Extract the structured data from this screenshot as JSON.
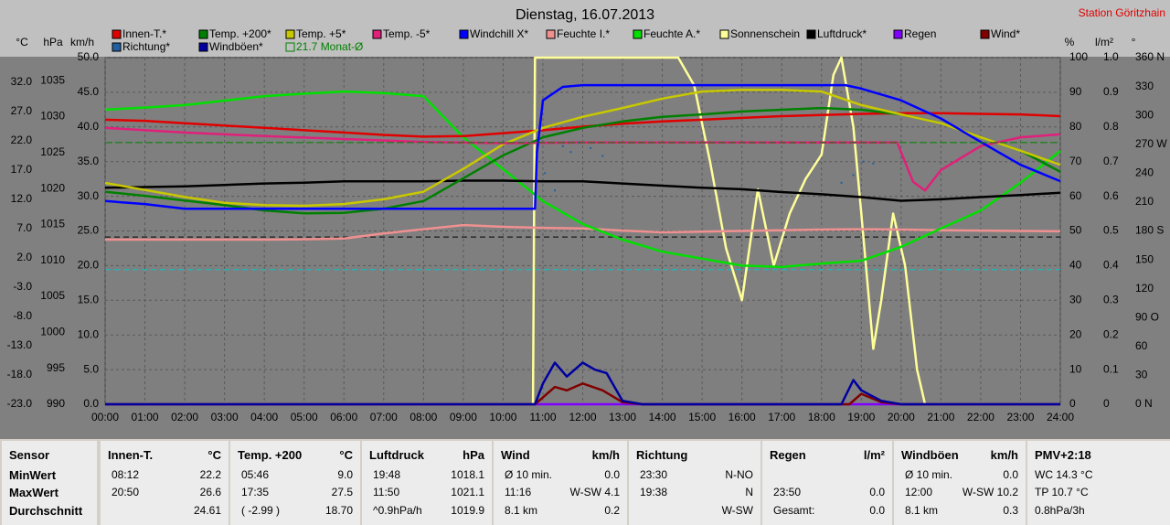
{
  "chart_data": {
    "type": "line",
    "title": "Dienstag, 16.07.2013",
    "station": "Station Göritzhain",
    "grid": true,
    "x": [
      0,
      1,
      2,
      3,
      4,
      5,
      6,
      7,
      8,
      9,
      10,
      11,
      12,
      13,
      14,
      15,
      16,
      17,
      18,
      19,
      20,
      21,
      22,
      23,
      24
    ],
    "xlim": [
      0,
      24
    ],
    "xticks": [
      {
        "value": 0,
        "label": "00:00"
      },
      {
        "value": 1,
        "label": "01:00"
      },
      {
        "value": 2,
        "label": "02:00"
      },
      {
        "value": 3,
        "label": "03:00"
      },
      {
        "value": 4,
        "label": "04:00"
      },
      {
        "value": 5,
        "label": "05:00"
      },
      {
        "value": 6,
        "label": "06:00"
      },
      {
        "value": 7,
        "label": "07:00"
      },
      {
        "value": 8,
        "label": "08:00"
      },
      {
        "value": 9,
        "label": "09:00"
      },
      {
        "value": 10,
        "label": "10:00"
      },
      {
        "value": 11,
        "label": "11:00"
      },
      {
        "value": 12,
        "label": "12:00"
      },
      {
        "value": 13,
        "label": "13:00"
      },
      {
        "value": 14,
        "label": "14:00"
      },
      {
        "value": 15,
        "label": "15:00"
      },
      {
        "value": 16,
        "label": "16:00"
      },
      {
        "value": 17,
        "label": "17:00"
      },
      {
        "value": 18,
        "label": "18:00"
      },
      {
        "value": 19,
        "label": "19:00"
      },
      {
        "value": 20,
        "label": "20:00"
      },
      {
        "value": 21,
        "label": "21:00"
      },
      {
        "value": 22,
        "label": "22:00"
      },
      {
        "value": 23,
        "label": "23:00"
      },
      {
        "value": 24,
        "label": "24:00"
      }
    ],
    "axes": {
      "c": {
        "unit": "°C",
        "lim": [
          -23,
          36.2
        ],
        "ticks": [
          {
            "value": -23,
            "label": "-23.0"
          },
          {
            "value": -18,
            "label": "-18.0"
          },
          {
            "value": -13,
            "label": "-13.0"
          },
          {
            "value": -8,
            "label": "-8.0"
          },
          {
            "value": -3,
            "label": "-3.0"
          },
          {
            "value": 2,
            "label": "2.0"
          },
          {
            "value": 7,
            "label": "7.0"
          },
          {
            "value": 12,
            "label": "12.0"
          },
          {
            "value": 17,
            "label": "17.0"
          },
          {
            "value": 22,
            "label": "22.0"
          },
          {
            "value": 27,
            "label": "27.0"
          },
          {
            "value": 32,
            "label": "32.0"
          }
        ]
      },
      "hpa": {
        "unit": "hPa",
        "lim": [
          990,
          1038.2
        ],
        "ticks": [
          990,
          995,
          1000,
          1005,
          1010,
          1015,
          1020,
          1025,
          1030,
          1035
        ]
      },
      "kmh": {
        "unit": "km/h",
        "lim": [
          0,
          50
        ],
        "ticks": [
          {
            "value": 0,
            "label": "0.0"
          },
          {
            "value": 5,
            "label": "5.0"
          },
          {
            "value": 10,
            "label": "10.0"
          },
          {
            "value": 15,
            "label": "15.0"
          },
          {
            "value": 20,
            "label": "20.0"
          },
          {
            "value": 25,
            "label": "25.0"
          },
          {
            "value": 30,
            "label": "30.0"
          },
          {
            "value": 35,
            "label": "35.0"
          },
          {
            "value": 40,
            "label": "40.0"
          },
          {
            "value": 45,
            "label": "45.0"
          },
          {
            "value": 50,
            "label": "50.0"
          }
        ]
      },
      "pct": {
        "unit": "%",
        "lim": [
          0,
          100
        ],
        "ticks": [
          0,
          10,
          20,
          30,
          40,
          50,
          60,
          70,
          80,
          90,
          100
        ]
      },
      "mm": {
        "unit": "l/m²",
        "lim": [
          0,
          1
        ],
        "ticks": [
          0,
          0.1,
          0.2,
          0.3,
          0.4,
          0.5,
          0.6,
          0.7,
          0.8,
          0.9,
          {
            "value": 1,
            "label": "1.0"
          }
        ]
      },
      "deg": {
        "unit": "°",
        "lim": [
          0,
          360
        ],
        "ticks": [
          {
            "value": 0,
            "label": "0 N"
          },
          30,
          60,
          {
            "value": 90,
            "label": "90 O"
          },
          120,
          150,
          {
            "value": 180,
            "label": "180 S"
          },
          210,
          240,
          {
            "value": 270,
            "label": "270 W"
          },
          300,
          330,
          {
            "value": 360,
            "label": "360 N"
          }
        ]
      }
    },
    "reference_lines": [
      {
        "axis": "hpa",
        "value": 1013.25,
        "color": "#000000"
      },
      {
        "axis": "c",
        "value": 0,
        "color": "#00c8c8"
      }
    ],
    "series": [
      {
        "name": "Innen-T.*",
        "color": "#e00000",
        "axis": "c",
        "values": [
          25.6,
          25.4,
          25.0,
          24.6,
          24.2,
          23.8,
          23.4,
          23.0,
          22.7,
          22.8,
          23.3,
          23.8,
          24.4,
          24.9,
          25.3,
          25.6,
          25.9,
          26.2,
          26.4,
          26.6,
          26.7,
          26.7,
          26.6,
          26.5,
          26.2
        ]
      },
      {
        "name": "Temp. +200*",
        "color": "#008000",
        "axis": "c",
        "values": [
          13.3,
          12.6,
          11.8,
          11.0,
          10.1,
          9.6,
          9.7,
          10.4,
          11.7,
          15.6,
          19.5,
          22.6,
          24.2,
          25.3,
          26.1,
          26.5,
          27.0,
          27.3,
          27.6,
          27.3,
          26.5,
          25.0,
          22.6,
          20.3,
          16.7
        ]
      },
      {
        "name": "Temp. +5*",
        "color": "#c8c800",
        "axis": "c",
        "values": [
          14.8,
          13.6,
          12.4,
          11.4,
          11.0,
          10.9,
          11.2,
          12.0,
          13.3,
          17.2,
          21.4,
          24.2,
          26.1,
          27.6,
          29.2,
          30.4,
          30.7,
          30.7,
          30.4,
          28.1,
          26.5,
          25.0,
          22.6,
          20.3,
          17.9
        ]
      },
      {
        "name": "Temp. -5*",
        "color": "#e0207a",
        "axis": "c",
        "x": [
          0,
          2,
          4,
          6,
          8,
          10,
          12,
          14,
          16,
          18,
          19.9,
          20.3,
          20.6,
          21,
          22,
          23,
          24
        ],
        "values": [
          24.2,
          23.4,
          22.8,
          22.3,
          21.8,
          21.6,
          21.7,
          21.7,
          21.7,
          21.7,
          21.7,
          15,
          13.5,
          17,
          21.1,
          22.6,
          23.1
        ]
      },
      {
        "name": "Windchill X*",
        "color": "#0000ff",
        "axis": "c",
        "x": [
          0,
          1,
          2,
          4,
          6,
          8,
          10,
          10.8,
          10.85,
          11,
          11.5,
          12,
          14,
          16,
          18,
          18.6,
          19,
          20,
          21,
          22,
          23,
          24
        ],
        "values": [
          11.7,
          11.2,
          10.4,
          10.4,
          10.4,
          10.4,
          10.4,
          10.4,
          20,
          28.9,
          31.2,
          31.5,
          31.5,
          31.5,
          31.5,
          31.5,
          30.9,
          28.9,
          25.8,
          21.8,
          17.9,
          15.1
        ]
      },
      {
        "name": "Feuchte I.*",
        "color": "#f09090",
        "axis": "pct",
        "values": [
          47.5,
          47.5,
          47.5,
          47.5,
          47.5,
          47.6,
          47.8,
          49.3,
          50.5,
          51.7,
          51.2,
          50.9,
          50.7,
          50.1,
          49.6,
          49.8,
          50.0,
          50.2,
          50.4,
          50.5,
          50.4,
          50.2,
          50.1,
          50.0,
          49.9
        ]
      },
      {
        "name": "Feuchte A.*",
        "color": "#00e000",
        "axis": "pct",
        "values": [
          85,
          85.6,
          86.3,
          87.6,
          88.9,
          89.6,
          90.2,
          89.8,
          88.9,
          77,
          67.8,
          58.6,
          52,
          47.5,
          44,
          42,
          40,
          39.6,
          40.6,
          41.4,
          45.4,
          50.7,
          55.9,
          63.9,
          73.1
        ]
      },
      {
        "name": "Sonnenschein",
        "color": "#ffff9a",
        "axis": "pct",
        "x": [
          0,
          10.75,
          10.8,
          14.4,
          14.8,
          15.2,
          15.6,
          16,
          16.4,
          16.8,
          17.2,
          17.6,
          18,
          18.3,
          18.5,
          18.8,
          19,
          19.3,
          19.5,
          19.8,
          20.1,
          20.4,
          20.6,
          24
        ],
        "values": [
          0,
          0,
          100,
          100,
          92,
          70,
          45,
          30,
          62,
          40,
          55,
          65,
          72,
          95,
          100,
          80,
          55,
          16,
          30,
          55,
          40,
          10,
          0,
          0
        ]
      },
      {
        "name": "Luftdruck*",
        "color": "#000000",
        "axis": "hpa",
        "values": [
          1020.1,
          1020.2,
          1020.3,
          1020.5,
          1020.7,
          1020.8,
          1021.0,
          1021.0,
          1021.0,
          1021.1,
          1021.1,
          1021.0,
          1021.0,
          1020.7,
          1020.4,
          1020.1,
          1019.9,
          1019.5,
          1019.2,
          1018.8,
          1018.3,
          1018.5,
          1018.8,
          1019.1,
          1019.4
        ]
      },
      {
        "name": "Regen",
        "color": "#8000ff",
        "axis": "mm",
        "x": [
          0,
          24
        ],
        "values": [
          0,
          0
        ]
      },
      {
        "name": "Wind*",
        "color": "#800000",
        "axis": "kmh",
        "x": [
          0,
          10.8,
          11,
          11.3,
          11.6,
          12,
          12.5,
          13,
          13.5,
          18.7,
          19,
          19.5,
          20,
          24
        ],
        "values": [
          0,
          0,
          1,
          2.5,
          2,
          3,
          2,
          0.3,
          0,
          0,
          1.5,
          0.3,
          0,
          0
        ]
      },
      {
        "name": "Richtung*",
        "color": "#2060a0",
        "axis": "deg",
        "type": "scatter",
        "x": [
          11.05,
          11.3,
          11.5,
          11.7,
          11.9,
          12.2,
          12.5,
          18.5,
          18.8,
          19.05,
          19.3
        ],
        "values": [
          240,
          222,
          268,
          262,
          272,
          266,
          258,
          230,
          238,
          252,
          250
        ]
      },
      {
        "name": "Windböen*",
        "color": "#0000a0",
        "axis": "kmh",
        "x": [
          0,
          10.8,
          11,
          11.3,
          11.6,
          12,
          12.3,
          12.6,
          13,
          13.5,
          18.5,
          18.8,
          19,
          19.5,
          20,
          24
        ],
        "values": [
          0,
          0,
          3,
          6,
          4,
          6,
          5,
          4.5,
          0.5,
          0,
          0,
          3.5,
          2,
          0.5,
          0,
          0
        ]
      },
      {
        "name": "21.7 Monat-Ø",
        "color": "#008000",
        "axis": "c",
        "type": "hline",
        "value": 21.7
      }
    ]
  },
  "table": {
    "columns": [
      {
        "title": "Sensor",
        "rows": [
          "MinWert",
          "MaxWert",
          "Durchschnitt"
        ]
      },
      {
        "title": "Innen-T.",
        "unit": "°C",
        "rows": [
          [
            "08:12",
            "22.2"
          ],
          [
            "20:50",
            "26.6"
          ],
          [
            null,
            "24.61"
          ]
        ]
      },
      {
        "title": "Temp. +200",
        "unit": "°C",
        "rows": [
          [
            "05:46",
            "9.0"
          ],
          [
            "17:35",
            "27.5"
          ],
          [
            "( -2.99 )",
            "18.70"
          ]
        ]
      },
      {
        "title": "Luftdruck",
        "unit": "hPa",
        "rows": [
          [
            "19:48",
            "1018.1"
          ],
          [
            "11:50",
            "1021.1"
          ],
          [
            "^0.9hPa/h",
            "1019.9"
          ]
        ]
      },
      {
        "title": "Wind",
        "unit": "km/h",
        "rows": [
          [
            "Ø 10 min.",
            "0.0"
          ],
          [
            "11:16",
            "W-SW 4.1"
          ],
          [
            "8.1 km",
            "0.2"
          ]
        ]
      },
      {
        "title": "Richtung",
        "rows": [
          [
            "23:30",
            "N-NO"
          ],
          [
            "19:38",
            "N"
          ],
          [
            null,
            "W-SW"
          ]
        ]
      },
      {
        "title": "Regen",
        "unit": "l/m²",
        "rows": [
          [
            null,
            null
          ],
          [
            "23:50",
            "0.0"
          ],
          [
            "Gesamt:",
            "0.0"
          ]
        ]
      },
      {
        "title": "Windböen",
        "unit": "km/h",
        "rows": [
          [
            "Ø 10 min.",
            "0.0"
          ],
          [
            "12:00",
            "W-SW 10.2"
          ],
          [
            "8.1 km",
            "0.3"
          ]
        ]
      },
      {
        "title": "PMV+2:18",
        "rows": [
          [
            "WC 14.3 °C"
          ],
          [
            "TP 10.7 °C"
          ],
          [
            "0.8hPa/3h"
          ]
        ]
      }
    ]
  }
}
